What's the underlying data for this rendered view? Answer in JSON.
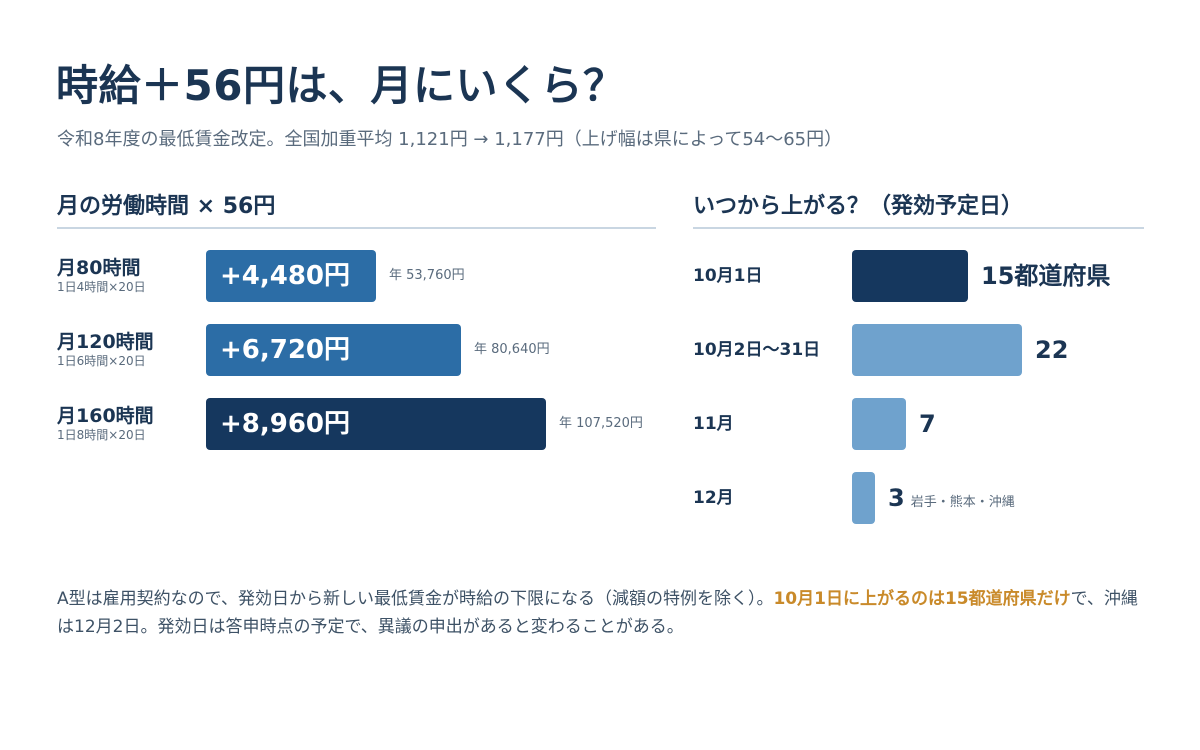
{
  "title": "時給＋56円は、月にいくら？",
  "subtitle": "令和8年度の最低賃金改定。全国加重平均 1,121円 → 1,177円（上げ幅は県によって54〜65円）",
  "colors": {
    "dark": "#15375e",
    "mid": "#2c6da6",
    "light": "#6fa2cd",
    "highlight": "#c98a2a"
  },
  "chart_data": [
    {
      "type": "bar",
      "title": "月の労働時間 × 56円",
      "categories": [
        "月80時間",
        "月120時間",
        "月160時間"
      ],
      "category_notes": [
        "1日4時間×20日",
        "1日6時間×20日",
        "1日8時間×20日"
      ],
      "values": [
        4480,
        6720,
        8960
      ],
      "value_labels": [
        "+4,480円",
        "+6,720円",
        "+8,960円"
      ],
      "annual_labels": [
        "年 53,760円",
        "年 80,640円",
        "年 107,520円"
      ],
      "bar_colors": [
        "mid",
        "mid",
        "dark"
      ]
    },
    {
      "type": "bar",
      "title": "いつから上がる？（発効予定日）",
      "categories": [
        "10月1日",
        "10月2日〜31日",
        "11月",
        "12月"
      ],
      "values": [
        15,
        22,
        7,
        3
      ],
      "value_labels": [
        "15都道府県",
        "22",
        "7",
        "3"
      ],
      "notes": [
        "",
        "",
        "",
        "岩手・熊本・沖縄"
      ],
      "bar_colors": [
        "dark",
        "light",
        "light",
        "light"
      ]
    }
  ],
  "footnote": {
    "part1": "A型は雇用契約なので、発効日から新しい最低賃金が時給の下限になる（減額の特例を除く）。",
    "highlight": "10月1日に上がるのは15都道府県だけ",
    "part2": "で、沖縄は12月2日。発効日は答申時点の予定で、異議の申出があると変わることがある。"
  }
}
